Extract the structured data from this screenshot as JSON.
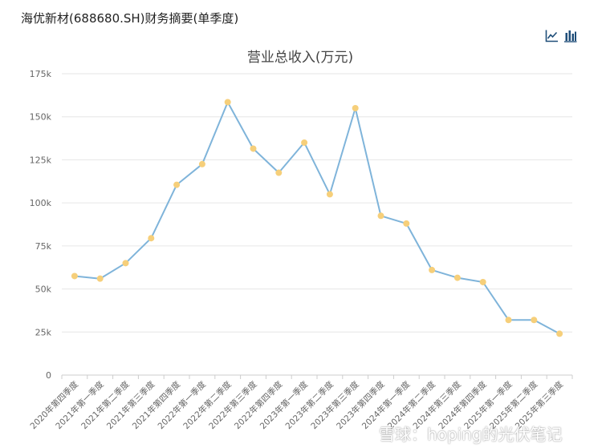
{
  "header": {
    "title": "海优新材(688680.SH)财务摘要(单季度)"
  },
  "toolbar": [
    {
      "name": "line-chart-icon"
    },
    {
      "name": "bar-chart-icon"
    }
  ],
  "colors": {
    "line": "#7fb4da",
    "marker": "#f6cf7a",
    "grid": "#e6e6e6",
    "axis": "#cccccc"
  },
  "watermark": {
    "text": "雪球：hoping的光伏笔记"
  },
  "chart_data": {
    "type": "line",
    "title": "营业总收入(万元)",
    "xlabel": "",
    "ylabel": "",
    "ylim": [
      0,
      175000
    ],
    "yticks": [
      0,
      25000,
      50000,
      75000,
      100000,
      125000,
      150000,
      175000
    ],
    "ytick_labels": [
      "0",
      "25k",
      "50k",
      "75k",
      "100k",
      "125k",
      "150k",
      "175k"
    ],
    "grid": true,
    "legend": "none",
    "categories": [
      "2020年第四季度",
      "2021年第一季度",
      "2021年第二季度",
      "2021年第三季度",
      "2021年第四季度",
      "2022年第一季度",
      "2022年第二季度",
      "2022年第三季度",
      "2022年第四季度",
      "2023年第一季度",
      "2023年第二季度",
      "2023年第三季度",
      "2023年第四季度",
      "2024年第一季度",
      "2024年第二季度",
      "2024年第三季度",
      "2024年第四季度",
      "2025年第一季度",
      "2025年第二季度",
      "2025年第三季度"
    ],
    "series": [
      {
        "values": [
          57500,
          56000,
          65000,
          79500,
          110500,
          122500,
          158500,
          131500,
          117500,
          135000,
          105000,
          155000,
          92500,
          88000,
          61000,
          56500,
          54000,
          32000,
          32000,
          24000
        ]
      }
    ]
  }
}
